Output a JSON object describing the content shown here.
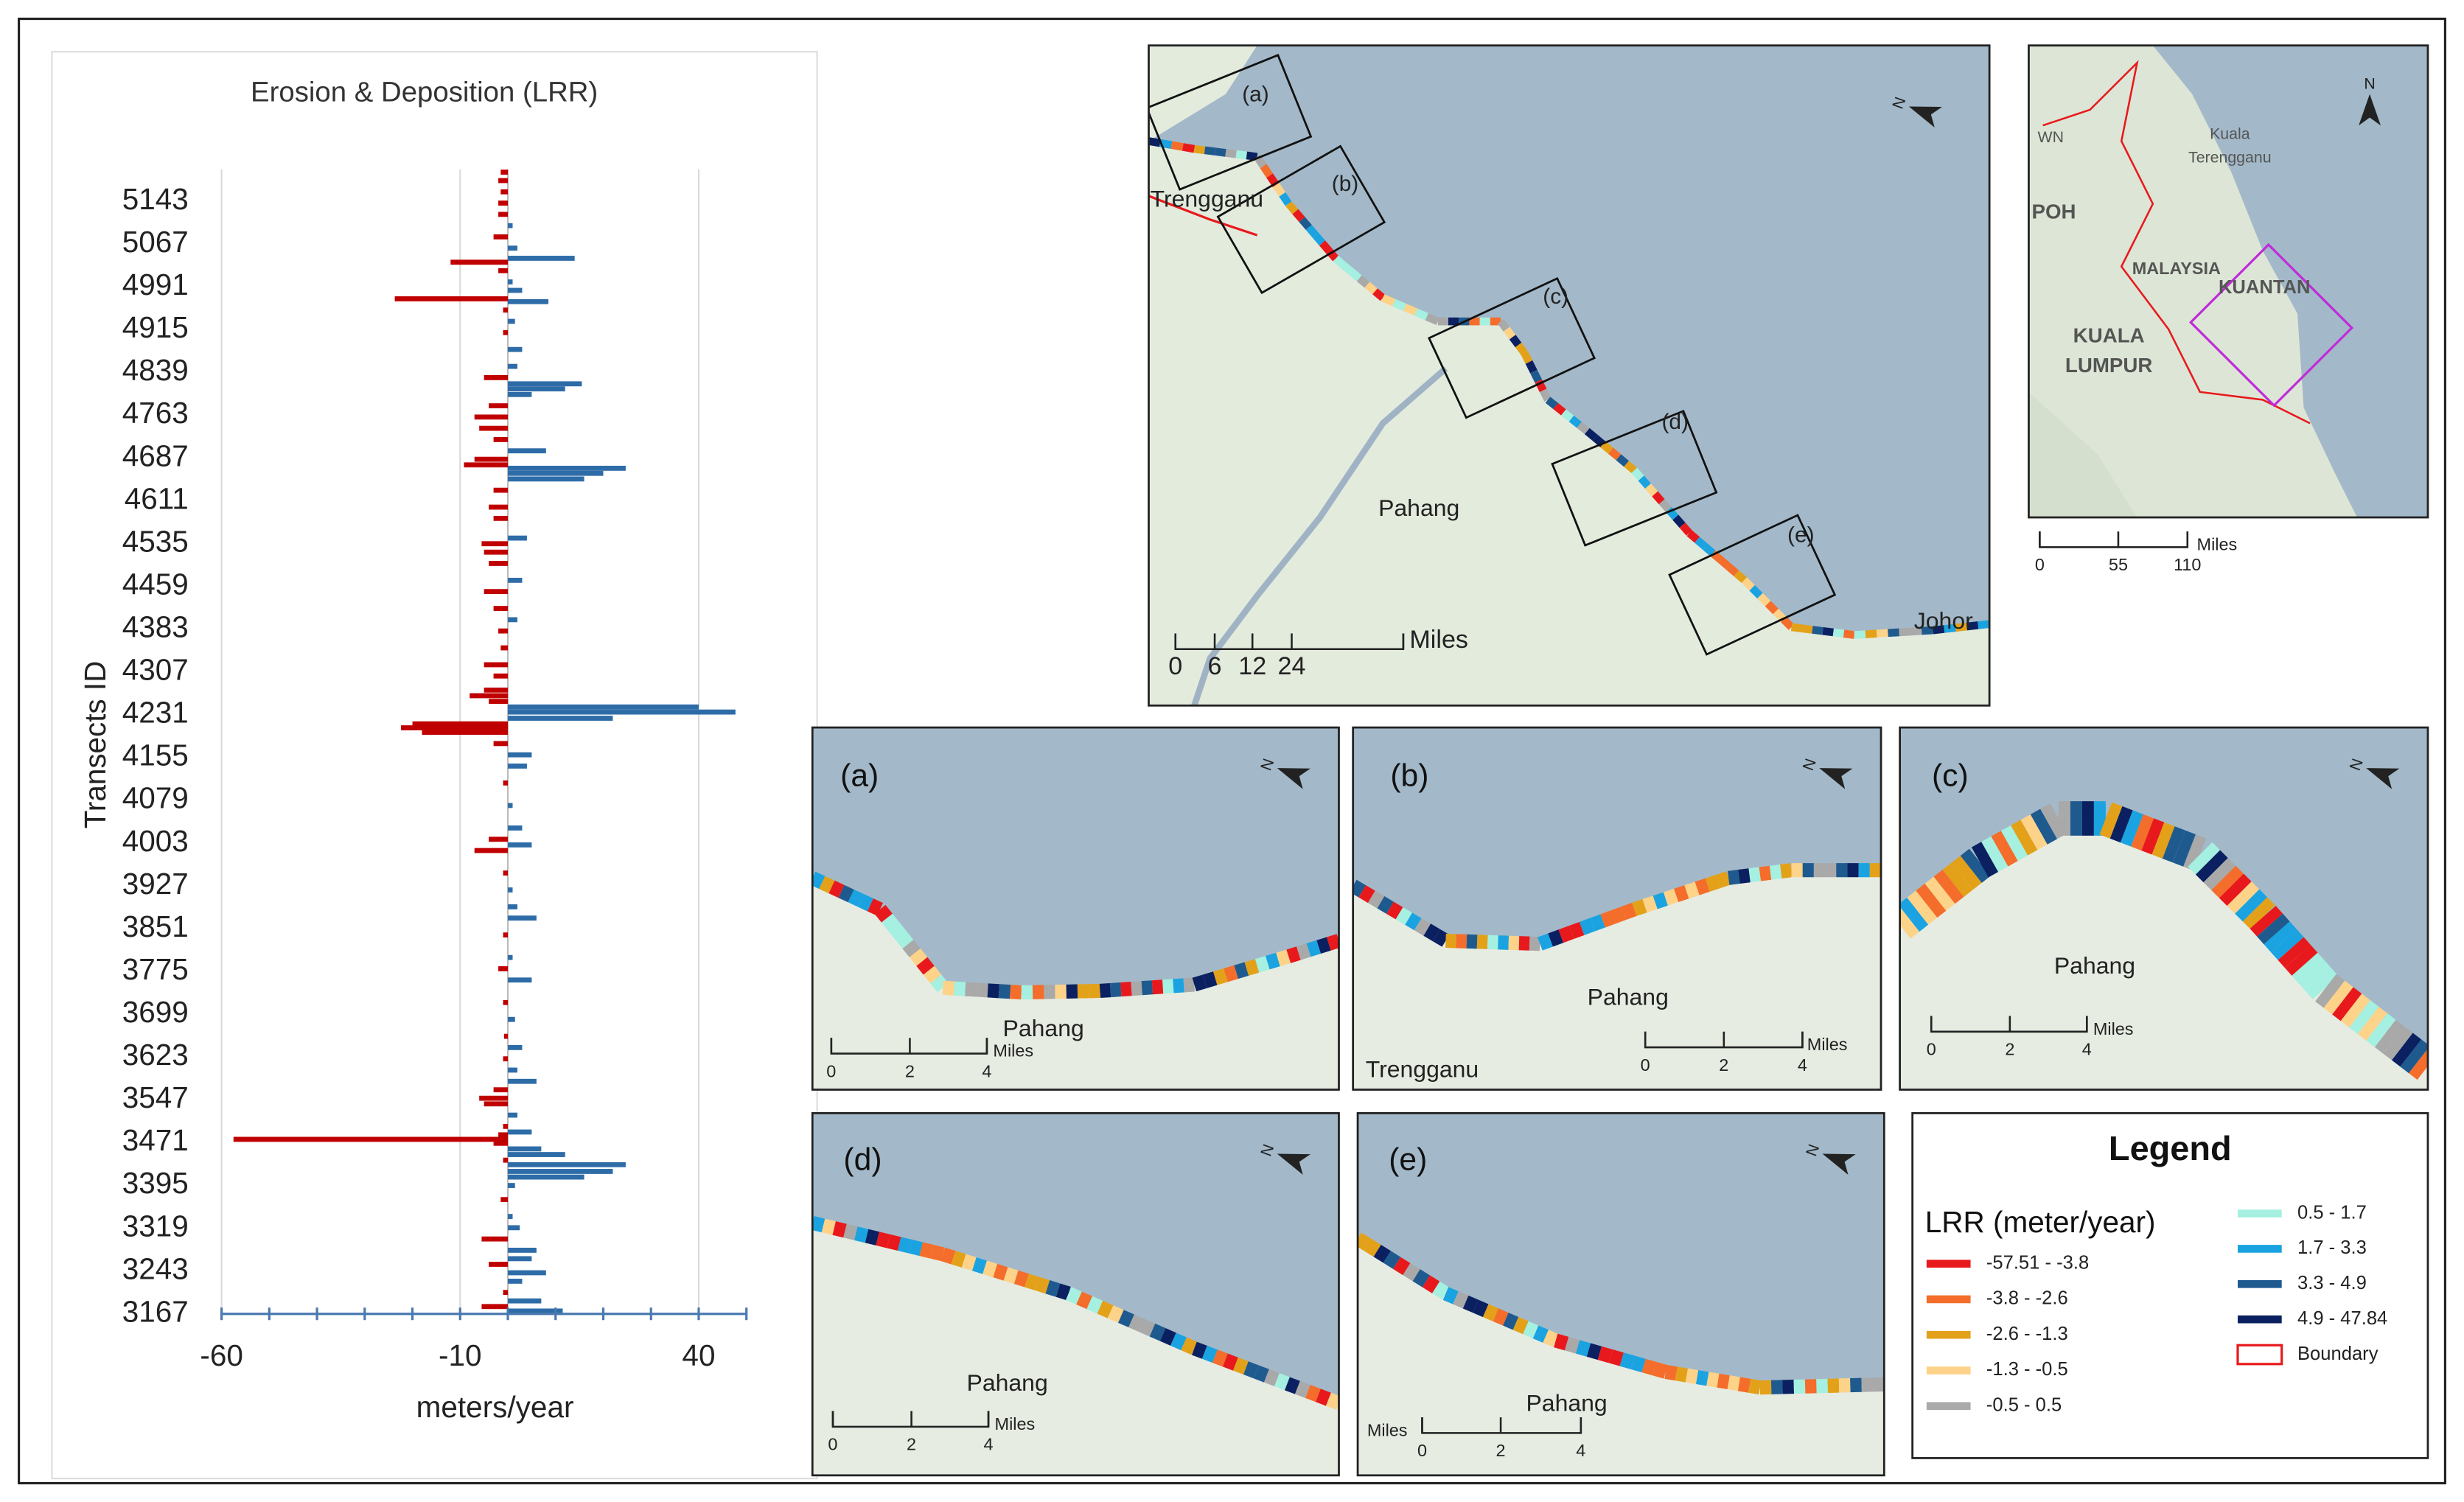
{
  "chart_data": {
    "type": "bar",
    "title": "Erosion & Deposition (LRR)",
    "ylabel": "Transects ID",
    "xlabel": "meters/year",
    "x": [
      3172,
      3180,
      3190,
      3205,
      3225,
      3240,
      3255,
      3265,
      3280,
      3300,
      3320,
      3340,
      3370,
      3395,
      3410,
      3420,
      3432,
      3440,
      3450,
      3460,
      3470,
      3477,
      3485,
      3490,
      3500,
      3520,
      3540,
      3550,
      3565,
      3580,
      3600,
      3620,
      3640,
      3660,
      3690,
      3720,
      3760,
      3780,
      3800,
      3840,
      3870,
      3890,
      3920,
      3950,
      3990,
      4000,
      4010,
      4030,
      4070,
      4110,
      4140,
      4160,
      4180,
      4200,
      4208,
      4215,
      4225,
      4236,
      4245,
      4255,
      4265,
      4275,
      4300,
      4320,
      4350,
      4380,
      4400,
      4420,
      4450,
      4470,
      4500,
      4520,
      4535,
      4545,
      4580,
      4600,
      4630,
      4650,
      4660,
      4669,
      4675,
      4685,
      4700,
      4720,
      4740,
      4760,
      4780,
      4800,
      4810,
      4819,
      4830,
      4850,
      4880,
      4910,
      4930,
      4950,
      4965,
      4970,
      4985,
      5000,
      5020,
      5035,
      5042,
      5060,
      5080,
      5100,
      5120,
      5140,
      5160,
      5180,
      5195
    ],
    "values": [
      11.5,
      -5.5,
      7,
      -1,
      3,
      8,
      -4,
      5,
      6,
      -5.5,
      2.5,
      1,
      -1.5,
      1.5,
      16,
      22,
      24.7,
      -1,
      12,
      7,
      -3,
      -57.5,
      -2,
      5,
      -1,
      2,
      -5,
      -6,
      -3,
      6,
      2,
      -1,
      3,
      -0.8,
      1.5,
      -1,
      5,
      -2,
      1,
      -1,
      6,
      2,
      1,
      -1,
      -7,
      5,
      -4,
      3,
      1,
      -1,
      4,
      5,
      -3,
      -18,
      -22.4,
      -20,
      22,
      47.7,
      40,
      -4,
      -8,
      -5,
      -3,
      -5,
      -1.5,
      -2,
      2,
      -3,
      -5,
      3,
      -4,
      -5,
      -5.5,
      4,
      -3,
      -4,
      -3,
      16,
      20,
      24.7,
      -9.2,
      -7,
      8,
      -3,
      -6,
      -7,
      -4,
      5,
      12,
      15.5,
      -5,
      2,
      3,
      -1,
      1.5,
      -1,
      8.5,
      -23.7,
      3,
      1,
      -2,
      -12,
      14,
      2,
      -3,
      1,
      -2,
      -2,
      -1.5,
      -2,
      -1.5
    ],
    "color_negative": "#c00000",
    "color_positive": "#2e6ca8",
    "ylim": [
      3167,
      5200
    ],
    "yticks": [
      5143,
      5067,
      4991,
      4915,
      4839,
      4763,
      4687,
      4611,
      4535,
      4459,
      4383,
      4307,
      4231,
      4155,
      4079,
      4003,
      3927,
      3851,
      3775,
      3699,
      3623,
      3547,
      3471,
      3395,
      3319,
      3243,
      3167
    ],
    "xlim": [
      -60,
      50
    ],
    "xticks": [
      -60,
      -10,
      40
    ],
    "xminor_ticks": [
      -60,
      -50,
      -40,
      -30,
      -20,
      -10,
      0,
      10,
      20,
      30,
      40,
      50
    ],
    "grid": true
  },
  "north_label": "N",
  "main_map": {
    "boxes": [
      "(a)",
      "(b)",
      "(c)",
      "(d)",
      "(e)"
    ],
    "places": [
      "Trengganu",
      "Pahang",
      "Johor"
    ],
    "scale": {
      "labels": [
        "0",
        "6",
        "12",
        "24"
      ],
      "unit": "Miles"
    }
  },
  "locator_map": {
    "places": [
      "WN",
      "Kuala",
      "Terengganu",
      "POH",
      "MALAYSIA",
      "KUANTAN",
      "KUALA",
      "LUMPUR"
    ],
    "scale": {
      "labels": [
        "0",
        "55",
        "110"
      ],
      "unit": "Miles"
    }
  },
  "panels": [
    {
      "label": "(a)",
      "places": [
        "Pahang"
      ],
      "scale": {
        "labels": [
          "0",
          "2",
          "4"
        ],
        "unit": "Miles"
      }
    },
    {
      "label": "(b)",
      "places": [
        "Pahang",
        "Trengganu"
      ],
      "scale": {
        "labels": [
          "0",
          "2",
          "4"
        ],
        "unit": "Miles"
      }
    },
    {
      "label": "(c)",
      "places": [
        "Pahang"
      ],
      "scale": {
        "labels": [
          "0",
          "2",
          "4"
        ],
        "unit": "Miles"
      }
    },
    {
      "label": "(d)",
      "places": [
        "Pahang"
      ],
      "scale": {
        "labels": [
          "0",
          "2",
          "4"
        ],
        "unit": "Miles"
      }
    },
    {
      "label": "(e)",
      "places": [
        "Pahang"
      ],
      "scale": {
        "labels": [
          "0",
          "2",
          "4"
        ],
        "unit": "Miles"
      }
    }
  ],
  "legend": {
    "title": "Legend",
    "subtitle": "LRR (meter/year)",
    "items": [
      {
        "label": "-57.51 - -3.8",
        "color": "#e8191c"
      },
      {
        "label": "-3.8 - -2.6",
        "color": "#f46d2a"
      },
      {
        "label": "-2.6 - -1.3",
        "color": "#e3a11a"
      },
      {
        "label": "-1.3 - -0.5",
        "color": "#fdd38a"
      },
      {
        "label": "-0.5 - 0.5",
        "color": "#a9a9a9"
      },
      {
        "label": "0.5 - 1.7",
        "color": "#a5f0e0"
      },
      {
        "label": "1.7 - 3.3",
        "color": "#1aa3e0"
      },
      {
        "label": "3.3 - 4.9",
        "color": "#1f5a8f"
      },
      {
        "label": "4.9 - 47.84",
        "color": "#0b2060"
      },
      {
        "label": "Boundary",
        "color": "#e8191c",
        "outline": true
      }
    ]
  }
}
